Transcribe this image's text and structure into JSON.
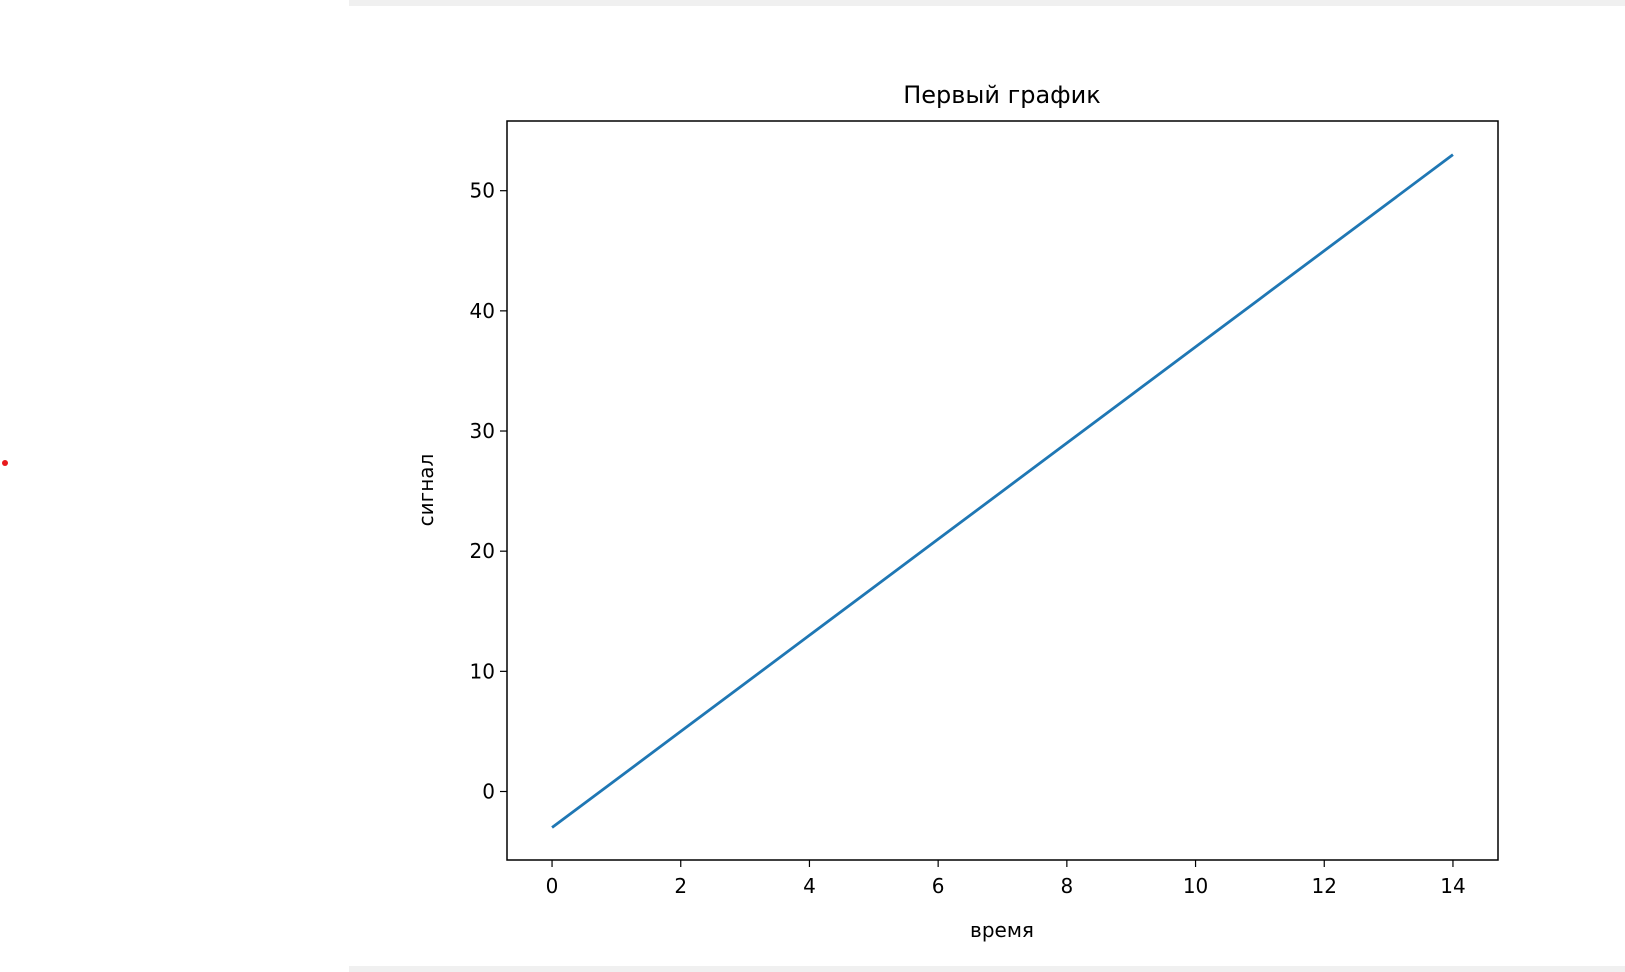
{
  "chart_data": {
    "type": "line",
    "title": "Первый график",
    "xlabel": "время",
    "ylabel": "сигнал",
    "x": [
      0,
      1,
      2,
      3,
      4,
      5,
      6,
      7,
      8,
      9,
      10,
      11,
      12,
      13,
      14
    ],
    "series": [
      {
        "values": [
          -3,
          1,
          5,
          9,
          13,
          17,
          21,
          25,
          29,
          33,
          37,
          41,
          45,
          49,
          53
        ],
        "color": "#1f77b4"
      }
    ],
    "xlim": [
      -0.7,
      14.7
    ],
    "ylim": [
      -5.7,
      55.8
    ],
    "xticks": [
      0,
      2,
      4,
      6,
      8,
      10,
      12,
      14
    ],
    "yticks": [
      0,
      10,
      20,
      30,
      40,
      50
    ],
    "grid": false
  },
  "colors": {
    "frame_band": "#f0f0f0",
    "cursor_dot": "#e8191c"
  }
}
